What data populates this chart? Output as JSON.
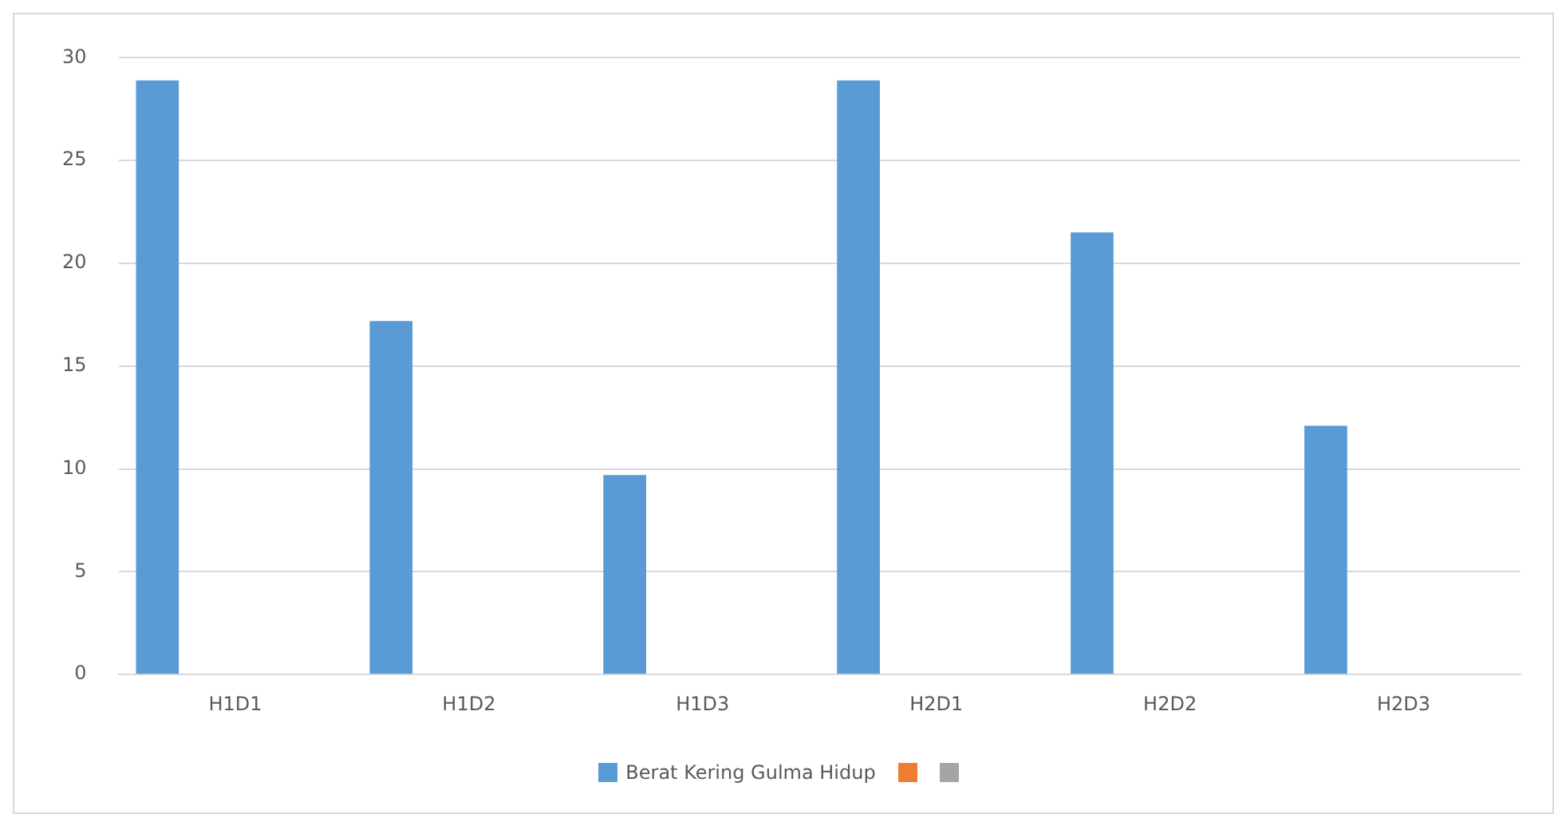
{
  "chart_data": {
    "type": "bar",
    "categories": [
      "H1D1",
      "H1D2",
      "H1D3",
      "H2D1",
      "H2D2",
      "H2D3"
    ],
    "series": [
      {
        "name": "Berat Kering Gulma Hidup",
        "color": "#5b9bd5",
        "values": [
          28.9,
          17.2,
          9.7,
          28.9,
          21.5,
          12.1
        ]
      },
      {
        "color": "#ed7d31",
        "values": [
          null,
          null,
          null,
          null,
          null,
          null
        ]
      },
      {
        "color": "#a5a5a5",
        "values": [
          null,
          null,
          null,
          null,
          null,
          null
        ]
      }
    ],
    "ylim": [
      0,
      30
    ],
    "yticks": [
      0,
      5,
      10,
      15,
      20,
      25,
      30
    ],
    "grid": "y",
    "legend": "bottom"
  }
}
